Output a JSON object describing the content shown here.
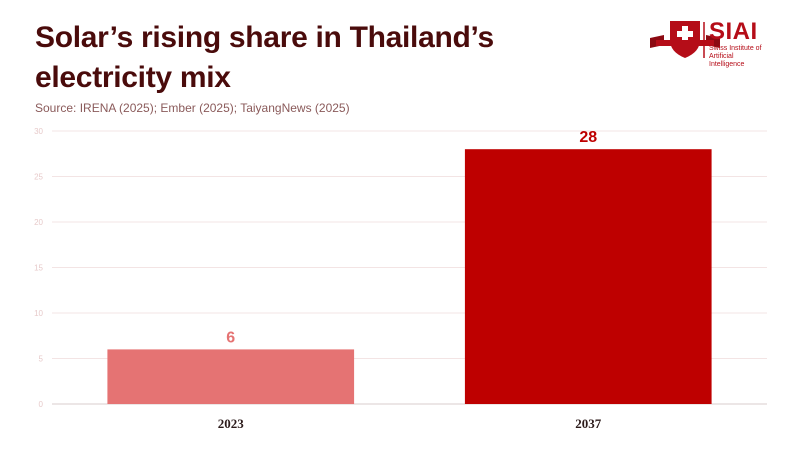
{
  "header": {
    "title": "Solar’s rising share in Thailand’s electricity mix",
    "source": "Source: IRENA (2025); Ember (2025); TaiyangNews (2025)"
  },
  "logo": {
    "name": "SIAI",
    "subtitle": "Swiss Institute of Artificial Intelligence",
    "colors": {
      "primary": "#b50d18",
      "cross": "#ffffff"
    }
  },
  "chart_data": {
    "type": "bar",
    "title": "Solar’s rising share in Thailand’s electricity mix",
    "xlabel": "",
    "ylabel": "",
    "categories": [
      "2023",
      "2037"
    ],
    "values": [
      6,
      28
    ],
    "data_labels": [
      "6",
      "28"
    ],
    "ylim": [
      0,
      30
    ],
    "yticks": [
      0,
      5,
      10,
      15,
      20,
      25,
      30
    ],
    "grid": true,
    "bar_colors": [
      "#e57373",
      "#be0000"
    ],
    "label_colors": [
      "#e57373",
      "#be0000"
    ]
  }
}
